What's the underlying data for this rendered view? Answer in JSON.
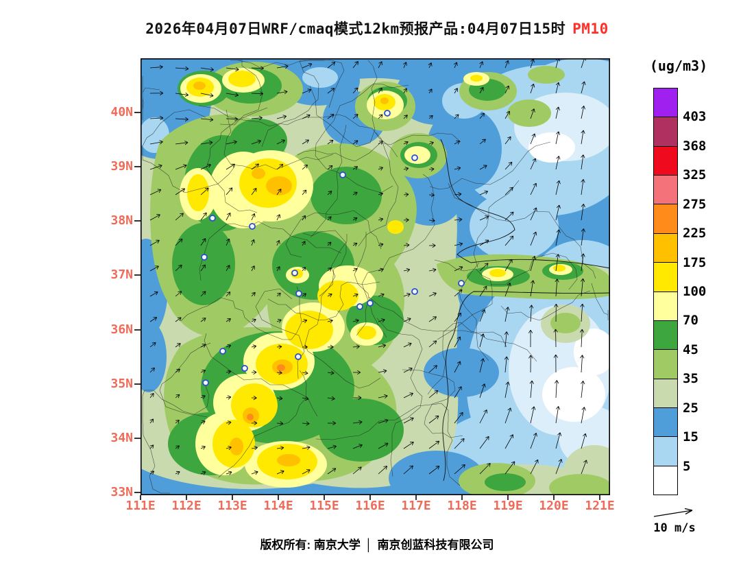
{
  "title": {
    "text": "2026年04月07日WRF/cmaq模式12km预报产品:04月07日15时",
    "pollutant": "PM10",
    "pollutant_color": "#FF3028"
  },
  "colorbar": {
    "unit": "(ug/m3)",
    "ticks": [
      "403",
      "368",
      "325",
      "275",
      "225",
      "175",
      "100",
      "70",
      "45",
      "35",
      "25",
      "15",
      "5"
    ],
    "cells_top_to_bottom": [
      {
        "range": ">403",
        "color": "#A020F0"
      },
      {
        "range": "368-403",
        "color": "#B03060"
      },
      {
        "range": "325-368",
        "color": "#F00A1E"
      },
      {
        "range": "275-325",
        "color": "#F4737B"
      },
      {
        "range": "225-275",
        "color": "#FF8C1A"
      },
      {
        "range": "175-225",
        "color": "#FFC000"
      },
      {
        "range": "100-175",
        "color": "#FFE900"
      },
      {
        "range": "70-100",
        "color": "#FFFF9E"
      },
      {
        "range": "45-70",
        "color": "#3DA63E"
      },
      {
        "range": "35-45",
        "color": "#A0CB64"
      },
      {
        "range": "25-35",
        "color": "#C9DBAE"
      },
      {
        "range": "15-25",
        "color": "#4F9ED9"
      },
      {
        "range": "5-15",
        "color": "#A9D7F2"
      },
      {
        "range": "<5",
        "color": "#FFFFFF"
      }
    ]
  },
  "axes": {
    "lat": [
      "40N",
      "39N",
      "38N",
      "37N",
      "36N",
      "35N",
      "34N",
      "33N"
    ],
    "lon": [
      "111E",
      "112E",
      "113E",
      "114E",
      "115E",
      "116E",
      "117E",
      "118E",
      "119E",
      "120E",
      "121E"
    ],
    "tick_color": "#F06A58"
  },
  "wind_legend": {
    "label": "10 m/s"
  },
  "footer": {
    "left": "版权所有: 南京大学",
    "separator": "│",
    "right": "南京创蓝科技有限公司"
  },
  "chart_data": {
    "type": "heatmap",
    "variable": "PM10",
    "unit": "ug/m3",
    "model": "WRF/cmaq 12km",
    "run_date": "2026年04月07日",
    "valid_time": "04月07日15时",
    "lon_range": [
      111,
      121.2
    ],
    "lat_range": [
      33,
      41
    ],
    "contour_levels": [
      5,
      15,
      25,
      35,
      45,
      70,
      100,
      175,
      225,
      275,
      325,
      368,
      403
    ],
    "wind_reference_ms": 10,
    "hotspots": [
      {
        "lon": 113.8,
        "lat": 38.5,
        "level": "100-225"
      },
      {
        "lon": 114.0,
        "lat": 33.8,
        "level": "100-225"
      },
      {
        "lon": 112.3,
        "lat": 40.4,
        "level": "100-175"
      },
      {
        "lon": 113.2,
        "lat": 40.6,
        "level": "100-175"
      },
      {
        "lon": 116.3,
        "lat": 40.2,
        "level": "100-175"
      }
    ],
    "low_regions": [
      {
        "area": "Bohai / Yellow Sea (east of 119E)",
        "level": "<15"
      },
      {
        "area": "northeast corner and coastal band",
        "level": "5-25"
      }
    ]
  }
}
